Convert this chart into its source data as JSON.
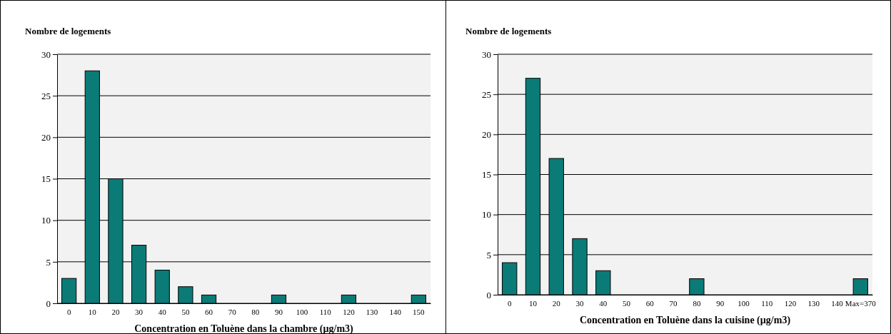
{
  "chart_data": [
    {
      "type": "bar",
      "ylabel": "Nombre de logements",
      "xlabel": "Concentration en Toluène dans la chambre (µg/m3)",
      "categories": [
        "0",
        "10",
        "20",
        "30",
        "40",
        "50",
        "60",
        "70",
        "80",
        "90",
        "100",
        "110",
        "120",
        "130",
        "140",
        "150"
      ],
      "values": [
        3,
        28,
        15,
        7,
        4,
        2,
        1,
        0,
        0,
        1,
        0,
        0,
        1,
        0,
        0,
        1
      ],
      "color": "#0b7b78",
      "ylim": [
        0,
        30
      ],
      "yticks": [
        0,
        5,
        10,
        15,
        20,
        25,
        30
      ],
      "grid": "y"
    },
    {
      "type": "bar",
      "ylabel": "Nombre de logements",
      "xlabel": "Concentration en Toluène dans la cuisine (µg/m3)",
      "categories": [
        "0",
        "10",
        "20",
        "30",
        "40",
        "50",
        "60",
        "70",
        "80",
        "90",
        "100",
        "110",
        "120",
        "130",
        "140",
        "Max=370"
      ],
      "values": [
        4,
        27,
        17,
        7,
        3,
        0,
        0,
        0,
        2,
        0,
        0,
        0,
        0,
        0,
        0,
        2
      ],
      "color": "#0b7b78",
      "ylim": [
        0,
        30
      ],
      "yticks": [
        0,
        5,
        10,
        15,
        20,
        25,
        30
      ],
      "grid": "y"
    }
  ]
}
